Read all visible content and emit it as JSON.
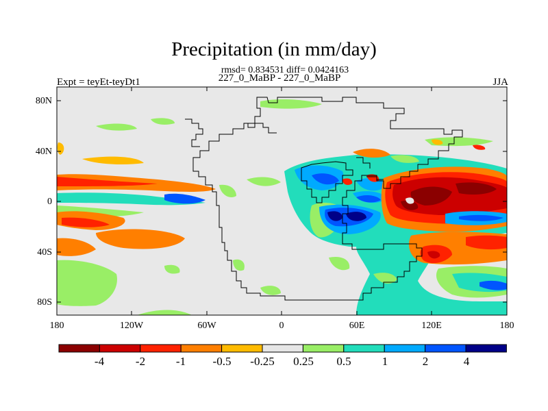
{
  "title": "Precipitation (in mm/day)",
  "stats": "rmsd= 0.834531 diff= 0.0424163",
  "subtitle": "227_0_MaBP - 227_0_MaBP",
  "expt_label": "Expt = teyEt-teyDt1",
  "season": "JJA",
  "map_data": {
    "projection": "cylindrical-equidistant",
    "lon_range": [
      -180,
      180
    ],
    "lat_range": [
      -90,
      90
    ],
    "lat_ticks": [
      "80N",
      "40N",
      "0",
      "40S",
      "80S"
    ],
    "lon_ticks": [
      "180",
      "120W",
      "60W",
      "0",
      "60E",
      "120E",
      "180"
    ],
    "background_color": "#e8e8e8"
  },
  "colorbar": {
    "colors": [
      "#8b0000",
      "#cc0000",
      "#ff2200",
      "#ff7f00",
      "#ffbb00",
      "#e6e6e6",
      "#99ee66",
      "#22ddbb",
      "#00aaff",
      "#0055ff",
      "#000088"
    ],
    "labels": [
      "-4",
      "-2",
      "-1",
      "-0.5",
      "-0.25",
      "0.25",
      "0.5",
      "1",
      "2",
      "4"
    ]
  }
}
